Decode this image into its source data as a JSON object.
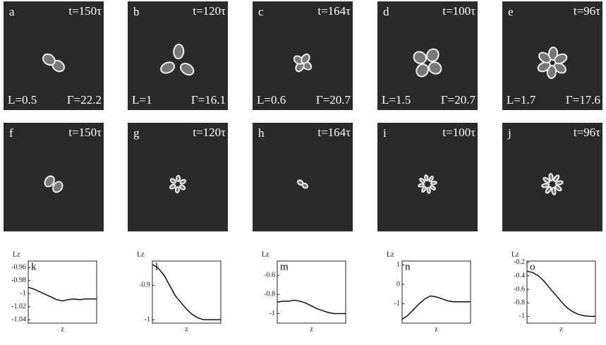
{
  "panels": [
    {
      "letter": "a",
      "time": "t=150τ",
      "L": "L=0.5",
      "gamma": "Γ=22.2"
    },
    {
      "letter": "b",
      "time": "t=120τ",
      "L": "L=1",
      "gamma": "Γ=16.1"
    },
    {
      "letter": "c",
      "time": "t=164τ",
      "L": "L=0.6",
      "gamma": "Γ=20.7"
    },
    {
      "letter": "d",
      "time": "t=100τ",
      "L": "L=1.5",
      "gamma": "Γ=20.7"
    },
    {
      "letter": "e",
      "time": "t=96τ",
      "L": "L=1.7",
      "gamma": "Γ=17.6"
    },
    {
      "letter": "f",
      "time": "t=150τ"
    },
    {
      "letter": "g",
      "time": "t=120τ"
    },
    {
      "letter": "h",
      "time": "t=164τ"
    },
    {
      "letter": "i",
      "time": "t=100τ"
    },
    {
      "letter": "j",
      "time": "t=96τ"
    }
  ],
  "chart_data": [
    {
      "type": "line",
      "label": "k",
      "ylabel": "Lz",
      "xlabel": "z",
      "color": "#111",
      "ylim": [
        -1.045,
        -0.95
      ],
      "yticks": [
        -0.96,
        -0.98,
        -1,
        -1.02,
        -1.04
      ],
      "values": [
        -0.99,
        -0.993,
        -0.997,
        -1.001,
        -1.005,
        -1.009,
        -1.011,
        -1.009,
        -1.008,
        -1.009,
        -1.008,
        -1.008,
        -1.008
      ]
    },
    {
      "type": "line",
      "label": "l",
      "ylabel": "Lz",
      "xlabel": "z",
      "color": "#111",
      "ylim": [
        -1.01,
        -0.83
      ],
      "yticks": [
        -0.9,
        -1
      ],
      "values": [
        -0.84,
        -0.85,
        -0.87,
        -0.9,
        -0.93,
        -0.95,
        -0.97,
        -0.985,
        -0.995,
        -1,
        -1.0,
        -1.0,
        -1.0
      ]
    },
    {
      "type": "line",
      "label": "m",
      "ylabel": "Lz",
      "xlabel": "z",
      "color": "#111",
      "ylim": [
        -1.1,
        -0.45
      ],
      "yticks": [
        -0.6,
        -0.8,
        -1
      ],
      "values": [
        -0.88,
        -0.87,
        -0.87,
        -0.86,
        -0.87,
        -0.89,
        -0.92,
        -0.95,
        -0.97,
        -0.99,
        -1.0,
        -1.0,
        -1.0
      ]
    },
    {
      "type": "line",
      "label": "n",
      "ylabel": "Lz",
      "xlabel": "z",
      "color": "#111",
      "ylim": [
        -2,
        1.2
      ],
      "yticks": [
        1,
        0,
        -1
      ],
      "values": [
        -1.8,
        -1.6,
        -1.3,
        -1.0,
        -0.75,
        -0.6,
        -0.65,
        -0.75,
        -0.85,
        -0.9,
        -0.9,
        -0.9,
        -0.9
      ]
    },
    {
      "type": "line",
      "label": "o",
      "ylabel": "Lz",
      "xlabel": "z",
      "color": "#111",
      "ylim": [
        -1.1,
        -0.18
      ],
      "yticks": [
        -0.2,
        -0.4,
        -0.6,
        -0.8,
        -1
      ],
      "values": [
        -0.33,
        -0.35,
        -0.4,
        -0.48,
        -0.58,
        -0.68,
        -0.78,
        -0.87,
        -0.93,
        -0.97,
        -0.99,
        -1.0,
        -1.0
      ]
    }
  ]
}
